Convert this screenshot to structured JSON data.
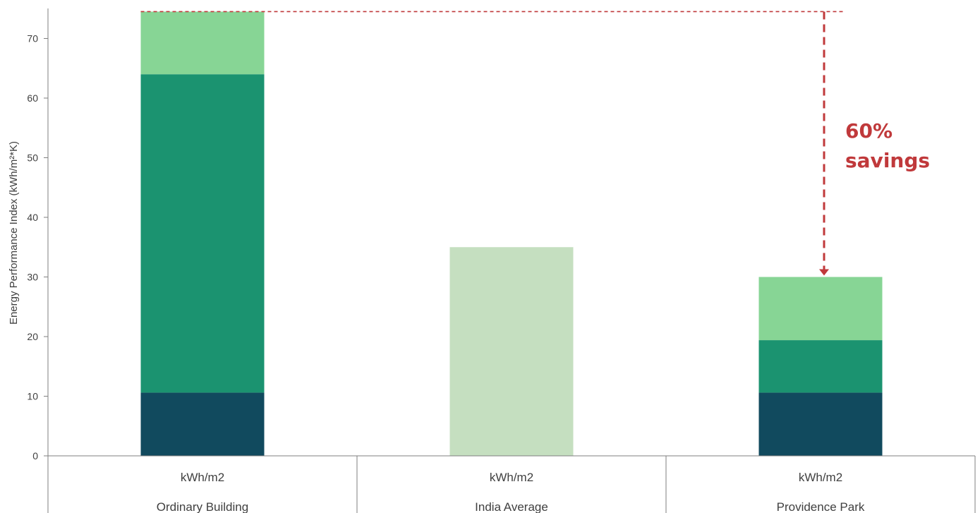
{
  "chart_data": {
    "type": "bar",
    "stacked": true,
    "title": "",
    "xlabel": "",
    "ylabel": "Energy Performance Index (kWh/m²*K)",
    "ylim": [
      0,
      75
    ],
    "yticks": [
      0,
      10,
      20,
      30,
      40,
      50,
      60,
      70
    ],
    "grid": false,
    "legend": "none",
    "categories": [
      "Ordinary Building",
      "India Average",
      "Providence Park"
    ],
    "unit_row": [
      "kWh/m2",
      "kWh/m2",
      "kWh/m2"
    ],
    "series": [
      {
        "color": "#114a5e",
        "values": [
          10.6,
          0,
          10.6
        ]
      },
      {
        "color": "#1b9370",
        "values": [
          53.4,
          0,
          8.8
        ]
      },
      {
        "color": "#87d595",
        "values": [
          10.5,
          0,
          10.6
        ]
      },
      {
        "color": "#c5dfc0",
        "values": [
          0,
          35.0,
          0
        ]
      }
    ],
    "reference_line": {
      "value": 74.5,
      "color": "#c0393b",
      "style": "dashed"
    },
    "annotation": {
      "lines": [
        "60%",
        "savings"
      ],
      "color": "#c0393b",
      "arrow_from": 74.5,
      "arrow_to": 30.0
    }
  }
}
